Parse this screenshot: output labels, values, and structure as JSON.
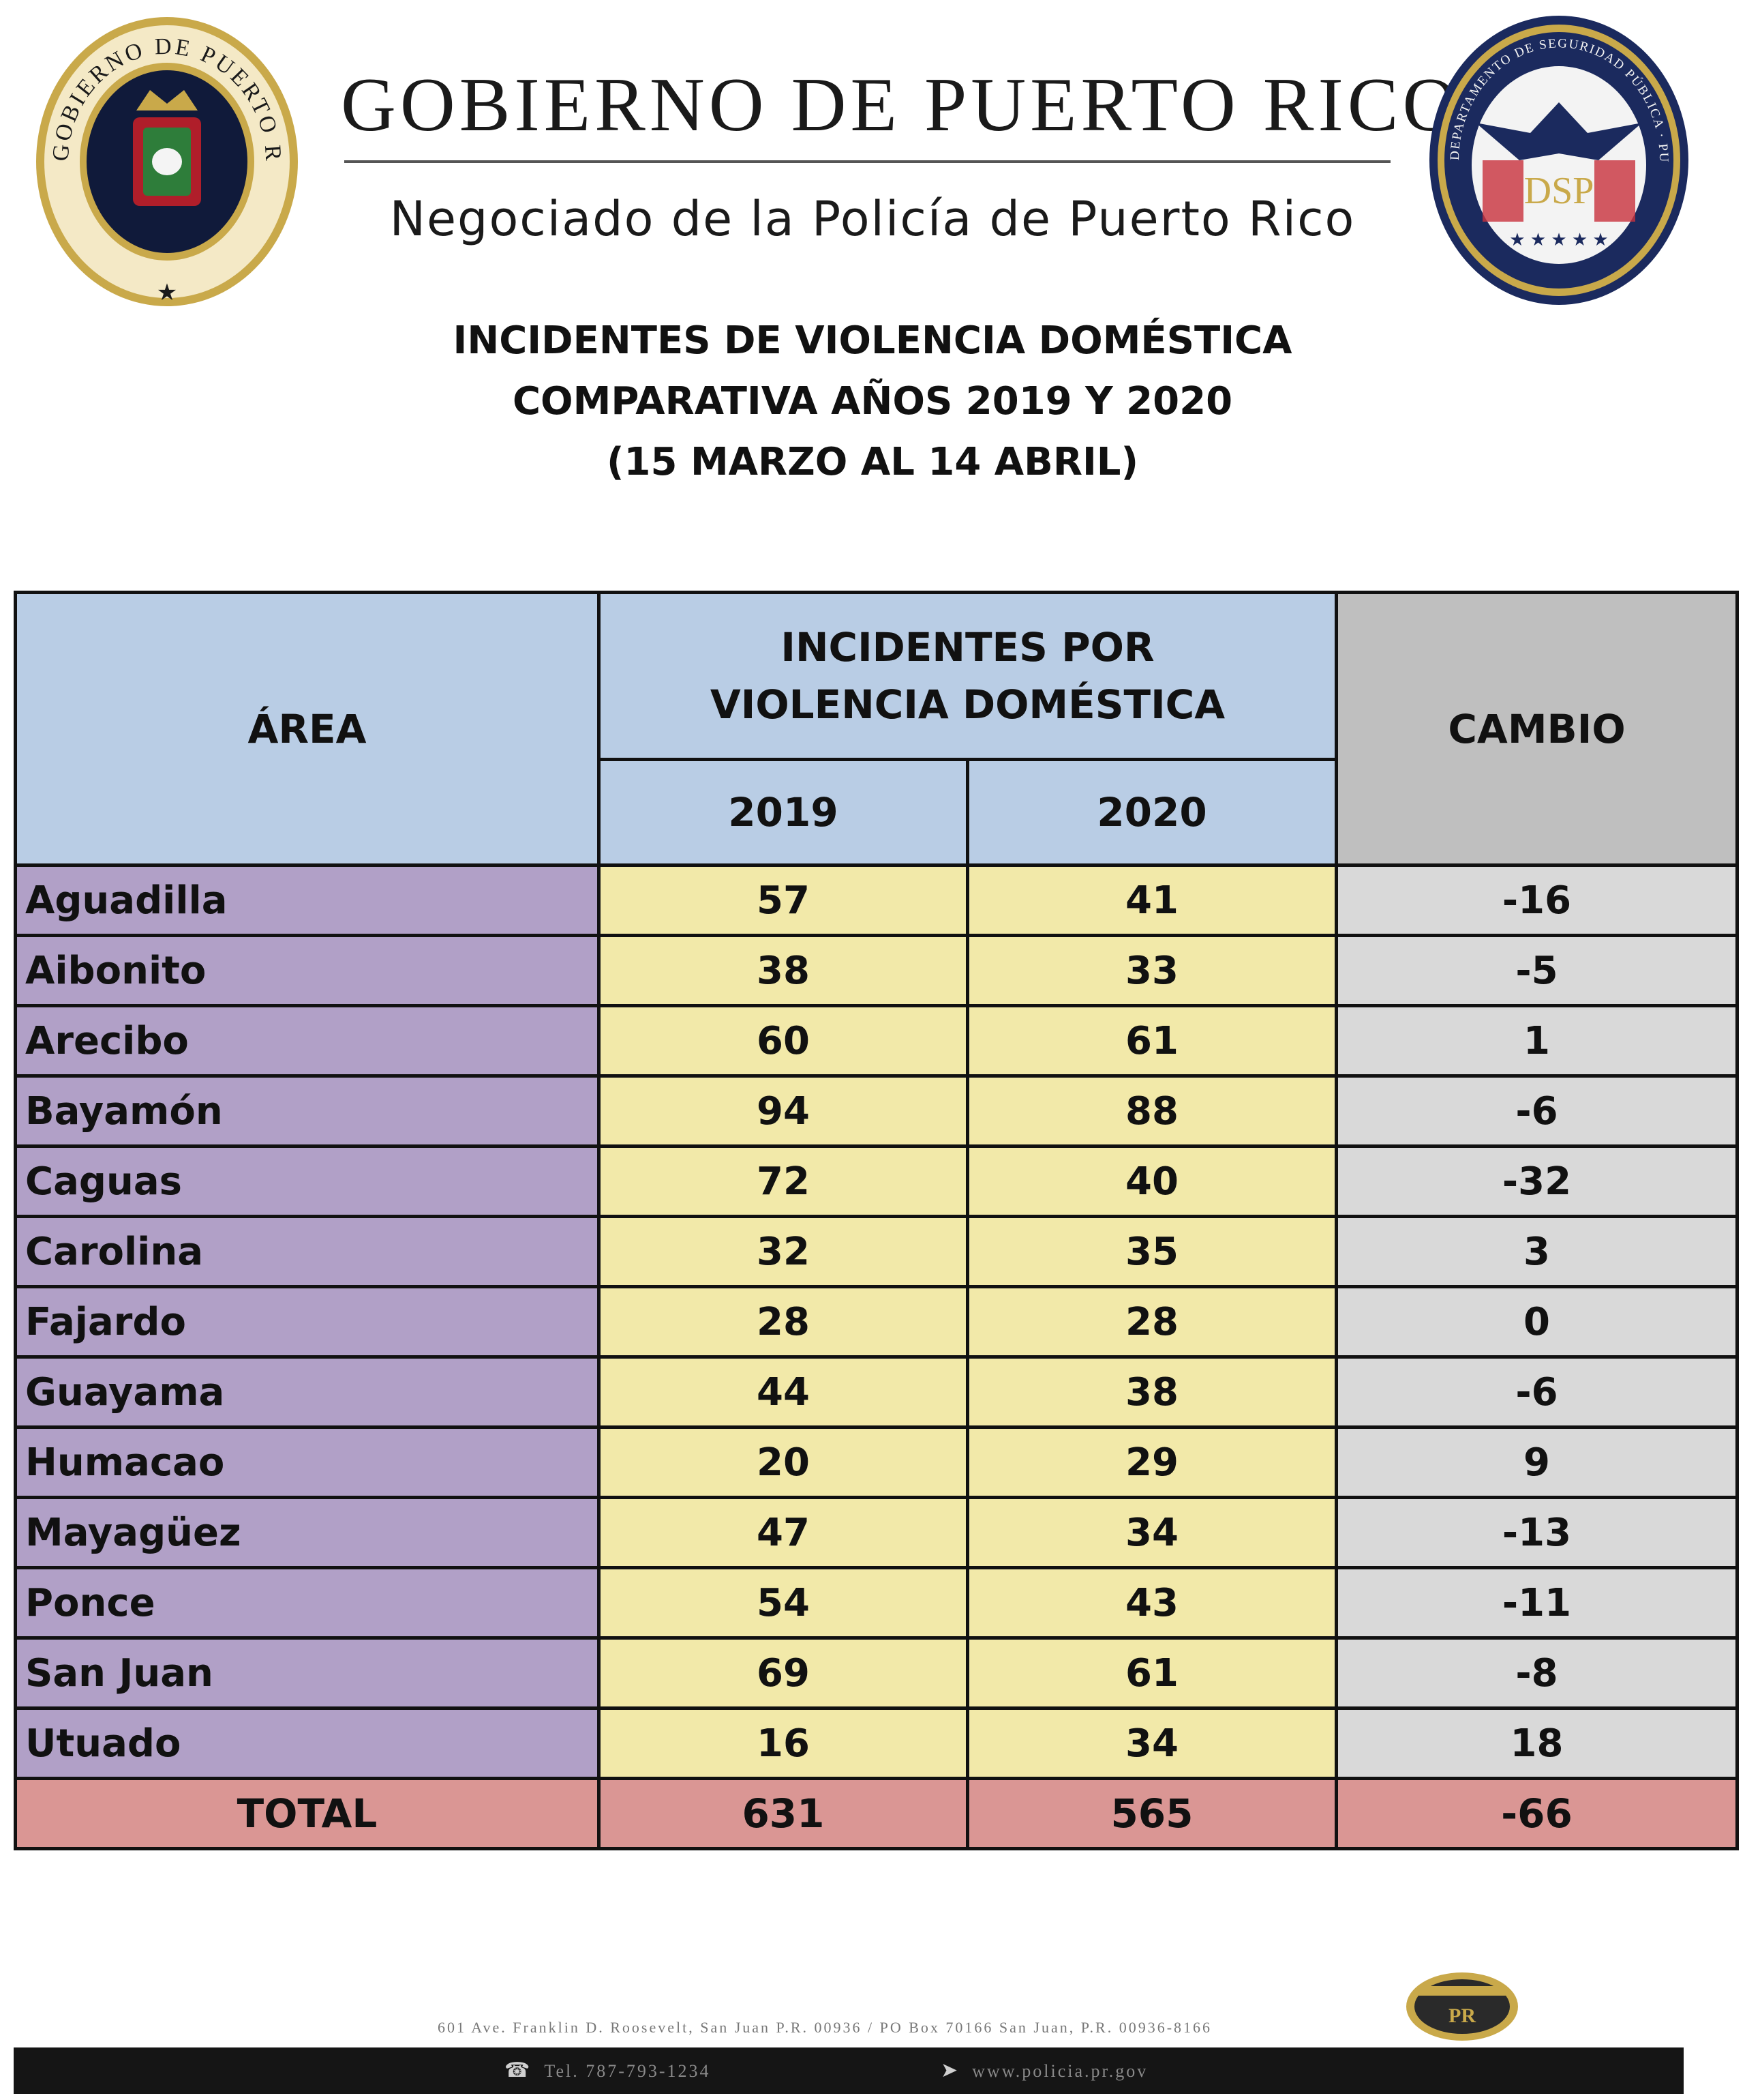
{
  "header": {
    "government": "GOBIERNO DE PUERTO RICO",
    "agency": "Negociado de la Policía de Puerto Rico",
    "left_seal": {
      "icon": "puerto-rico-government-seal-icon",
      "text": "GOBIERNO DE PUERTO RICO"
    },
    "right_seal": {
      "icon": "dsp-seal-icon",
      "text": "DEPARTAMENTO DE SEGURIDAD PÚBLICA · PUERTO RICO",
      "monogram": "DSP"
    }
  },
  "report": {
    "title_line1": "INCIDENTES DE VIOLENCIA DOMÉSTICA",
    "title_line2": "COMPARATIVA AÑOS 2019 Y 2020",
    "title_line3": "(15 MARZO AL 14 ABRIL)"
  },
  "table": {
    "headers": {
      "area": "ÁREA",
      "group_line1": "INCIDENTES POR",
      "group_line2": "VIOLENCIA DOMÉSTICA",
      "year1": "2019",
      "year2": "2020",
      "change": "CAMBIO"
    },
    "rows": [
      {
        "area": "Aguadilla",
        "y2019": "57",
        "y2020": "41",
        "change": "-16"
      },
      {
        "area": "Aibonito",
        "y2019": "38",
        "y2020": "33",
        "change": "-5"
      },
      {
        "area": "Arecibo",
        "y2019": "60",
        "y2020": "61",
        "change": "1"
      },
      {
        "area": "Bayamón",
        "y2019": "94",
        "y2020": "88",
        "change": "-6"
      },
      {
        "area": "Caguas",
        "y2019": "72",
        "y2020": "40",
        "change": "-32"
      },
      {
        "area": "Carolina",
        "y2019": "32",
        "y2020": "35",
        "change": "3"
      },
      {
        "area": "Fajardo",
        "y2019": "28",
        "y2020": "28",
        "change": "0"
      },
      {
        "area": "Guayama",
        "y2019": "44",
        "y2020": "38",
        "change": "-6"
      },
      {
        "area": "Humacao",
        "y2019": "20",
        "y2020": "29",
        "change": "9"
      },
      {
        "area": "Mayagüez",
        "y2019": "47",
        "y2020": "34",
        "change": "-13"
      },
      {
        "area": "Ponce",
        "y2019": "54",
        "y2020": "43",
        "change": "-11"
      },
      {
        "area": "San Juan",
        "y2019": "69",
        "y2020": "61",
        "change": "-8"
      },
      {
        "area": "Utuado",
        "y2019": "16",
        "y2020": "34",
        "change": "18"
      }
    ],
    "total": {
      "label": "TOTAL",
      "y2019": "631",
      "y2020": "565",
      "change": "-66"
    }
  },
  "footer": {
    "emblem": {
      "icon": "police-badge-icon",
      "text": "PR"
    },
    "address": "601 Ave. Franklin D. Roosevelt, San Juan P.R. 00936 / PO Box 70166 San Juan, P.R. 00936-8166",
    "phone": "Tel. 787-793-1234",
    "phone_icon": "phone-icon",
    "website": "www.policia.pr.gov",
    "website_icon": "cursor-icon"
  },
  "colors": {
    "header_blue": "#b9cde5",
    "header_gray": "#bfbfbf",
    "area_purple": "#b1a0c7",
    "value_yellow": "#f2e9a9",
    "change_gray": "#d9d9d9",
    "total_red": "#da9694"
  }
}
